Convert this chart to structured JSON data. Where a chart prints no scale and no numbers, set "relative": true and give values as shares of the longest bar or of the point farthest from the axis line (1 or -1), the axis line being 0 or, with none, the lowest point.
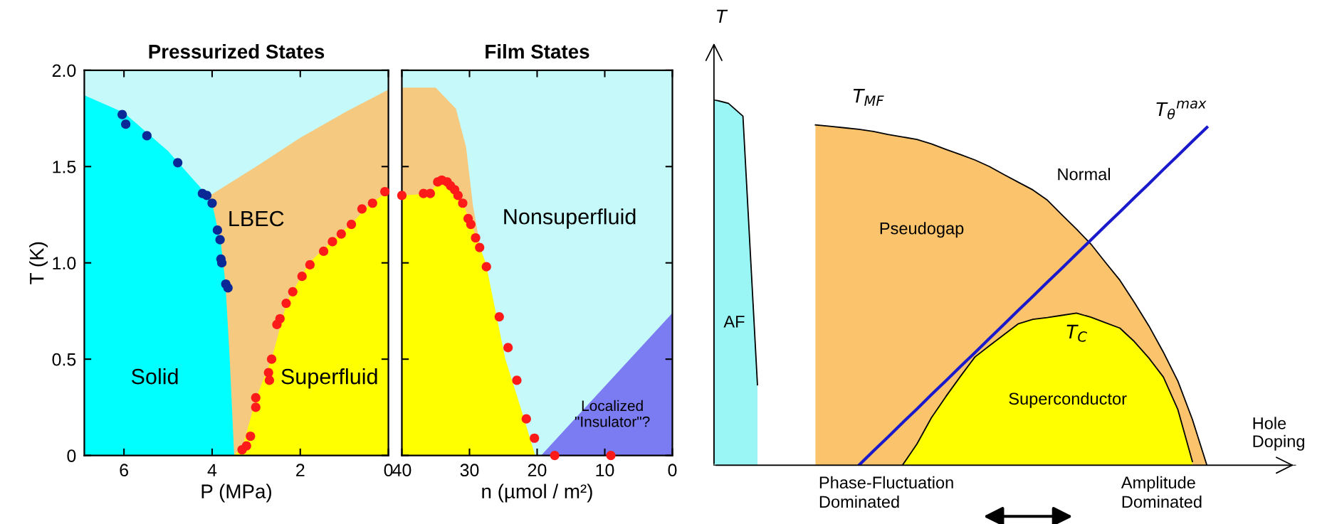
{
  "chart_data": [
    {
      "type": "scatter",
      "title": "Pressurized States",
      "xlabel": "P (MPa)",
      "ylabel": "T (K)",
      "xlim": [
        6.9,
        0
      ],
      "xticks": [
        6,
        4,
        2,
        0
      ],
      "ylim": [
        0,
        2
      ],
      "yticks": [
        0,
        0.5,
        {
          "value": 1,
          "label": "1.0"
        },
        1.5,
        {
          "value": 2,
          "label": "2.0"
        }
      ],
      "legend": false,
      "bands": [
        {
          "axis": "y",
          "from": 0,
          "to": 2,
          "color": "#c6fafa"
        }
      ],
      "series": [
        {
          "type": "area",
          "color": "#f5c97f",
          "x": [
            4.05,
            3.0,
            2.0,
            1.0,
            0
          ],
          "values": [
            1.35,
            1.5,
            1.65,
            1.78,
            1.9
          ]
        },
        {
          "type": "area",
          "color": "#00ffff",
          "x": [
            6.9,
            6.0,
            5.0,
            4.3,
            4.0,
            3.8,
            3.7,
            3.6,
            3.5
          ],
          "values": [
            1.87,
            1.78,
            1.58,
            1.4,
            1.31,
            1.1,
            0.9,
            0.5,
            0.0
          ]
        },
        {
          "type": "area",
          "color": "#ffff00",
          "x": [
            3.5,
            3.3,
            3.0,
            2.65,
            2.3,
            1.8,
            1.3,
            0.85,
            0.4,
            0
          ],
          "values": [
            0,
            0.05,
            0.3,
            0.5,
            0.8,
            1.0,
            1.11,
            1.2,
            1.31,
            1.37
          ]
        },
        {
          "marker": "circle",
          "color": "#0a2896",
          "x": [
            6.04,
            5.96,
            5.48,
            4.78,
            4.22,
            4.12,
            4.0,
            3.88,
            3.82,
            3.8,
            3.78,
            3.69,
            3.64
          ],
          "values": [
            1.77,
            1.72,
            1.66,
            1.52,
            1.36,
            1.35,
            1.31,
            1.17,
            1.12,
            1.02,
            1.0,
            0.89,
            0.87
          ]
        },
        {
          "marker": "circle",
          "color": "#ff1a1a",
          "x": [
            3.32,
            3.22,
            3.13,
            3.01,
            3.01,
            2.72,
            2.7,
            2.65,
            2.53,
            2.46,
            2.32,
            2.17,
            1.96,
            1.78,
            1.47,
            1.27,
            1.07,
            0.84,
            0.6,
            0.36,
            0.08
          ],
          "values": [
            0.03,
            0.05,
            0.1,
            0.3,
            0.25,
            0.43,
            0.39,
            0.5,
            0.68,
            0.71,
            0.79,
            0.85,
            0.93,
            0.99,
            1.06,
            1.11,
            1.15,
            1.2,
            1.28,
            1.31,
            1.37
          ]
        }
      ],
      "annotations": [
        "Solid",
        "LBEC",
        "Superfluid"
      ]
    },
    {
      "type": "scatter",
      "title": "Film States",
      "xlabel": "n (µmol / m²)",
      "xlim": [
        40,
        0
      ],
      "xticks": [
        40,
        30,
        20,
        10,
        0
      ],
      "ylim": [
        0,
        2
      ],
      "yticks": [
        0,
        0.5,
        1,
        1.5,
        2
      ],
      "tick_labels": "x",
      "legend": false,
      "bands": [
        {
          "axis": "y",
          "from": 0,
          "to": 2,
          "color": "#c6fafa"
        }
      ],
      "series": [
        {
          "type": "area",
          "color": "#f5c97f",
          "x": [
            40,
            35,
            32,
            30.5,
            29.5,
            28.5
          ],
          "values": [
            1.91,
            1.91,
            1.8,
            1.6,
            1.3,
            1.1
          ]
        },
        {
          "type": "area",
          "color": "#ffff00",
          "x": [
            40,
            36,
            34.5,
            33,
            31,
            29.5,
            27.6,
            24.7,
            22,
            20.3
          ],
          "values": [
            1.35,
            1.36,
            1.42,
            1.42,
            1.31,
            1.18,
            1.0,
            0.5,
            0.2,
            0
          ]
        },
        {
          "type": "area",
          "color": "#7b7bf2",
          "x": [
            19.4,
            0
          ],
          "values": [
            0,
            0.74
          ]
        },
        {
          "marker": "circle",
          "color": "#ff1a1a",
          "x": [
            40.0,
            36.8,
            35.8,
            34.7,
            34.1,
            33.3,
            32.8,
            32.2,
            31.7,
            31.0,
            30.2,
            29.8,
            29.1,
            28.5,
            27.5,
            25.6,
            24.3,
            23.0,
            21.6,
            20.4,
            17.4,
            9.1
          ],
          "values": [
            1.35,
            1.36,
            1.36,
            1.42,
            1.43,
            1.42,
            1.4,
            1.38,
            1.35,
            1.31,
            1.23,
            1.2,
            1.13,
            1.08,
            0.98,
            0.72,
            0.56,
            0.39,
            0.19,
            0.09,
            0,
            0
          ]
        }
      ],
      "annotations": [
        "Nonsuperfluid",
        "Localized\n\"Insulator\"?"
      ]
    },
    {
      "type": "line",
      "relative": true,
      "xlabel": "Hole Doping",
      "ylabel": "T",
      "legend": false,
      "categories": [
        null,
        null,
        null,
        null,
        null,
        null,
        null,
        null,
        null,
        null,
        null,
        null,
        null,
        null,
        null,
        null,
        null,
        null,
        null,
        null,
        null,
        null,
        null,
        null,
        null,
        null,
        null,
        null,
        null,
        null,
        null,
        null,
        null,
        null,
        null
      ],
      "series": [
        {
          "type": "area",
          "color": "#9af5f5",
          "values": [
            1.0,
            0.99,
            0.955,
            0.22,
            null,
            null,
            null,
            null,
            null,
            null,
            null,
            null,
            null,
            null,
            null,
            null,
            null,
            null,
            null,
            null,
            null,
            null,
            null,
            null,
            null,
            null,
            null,
            null,
            null,
            null,
            null,
            null,
            null,
            null,
            null
          ]
        },
        {
          "type": "area",
          "name": "T$_{MF}$",
          "color": "#fbc46c",
          "values": [
            null,
            null,
            null,
            null,
            null,
            null,
            null,
            0.931,
            0.927,
            0.923,
            0.919,
            0.913,
            0.905,
            0.898,
            0.891,
            0.879,
            0.864,
            0.85,
            0.835,
            0.817,
            0.795,
            0.774,
            0.753,
            0.725,
            0.685,
            0.646,
            0.605,
            0.555,
            0.506,
            0.445,
            0.381,
            0.309,
            0.23,
            0.125,
            0
          ]
        },
        {
          "type": "area",
          "name": "T$_{C}$",
          "color": "#ffff00",
          "values": [
            null,
            null,
            null,
            null,
            null,
            null,
            null,
            null,
            null,
            null,
            null,
            null,
            null,
            0,
            0.058,
            0.13,
            0.188,
            0.243,
            0.296,
            0.327,
            0.357,
            0.387,
            0.399,
            0.404,
            0.41,
            0.416,
            0.405,
            0.39,
            0.375,
            0.338,
            0.293,
            0.241,
            0.152,
            0.01,
            null
          ]
        },
        {
          "name": "T$_{θ}$$^{max}$",
          "color": "#1a1acc",
          "values": [
            null,
            null,
            null,
            null,
            null,
            null,
            null,
            null,
            null,
            null,
            0,
            0.039,
            0.077,
            0.116,
            0.154,
            0.193,
            0.231,
            0.27,
            0.308,
            0.347,
            0.385,
            0.424,
            0.462,
            0.501,
            0.539,
            0.578,
            0.616,
            0.655,
            0.693,
            0.732,
            0.77,
            0.809,
            0.847,
            0.886,
            0.924
          ]
        }
      ],
      "annotations": [
        "AF",
        "Pseudogap",
        "Normal",
        "Superconductor",
        "Phase-Fluctuation\nDominated",
        "Amplitude\nDominated"
      ]
    }
  ]
}
